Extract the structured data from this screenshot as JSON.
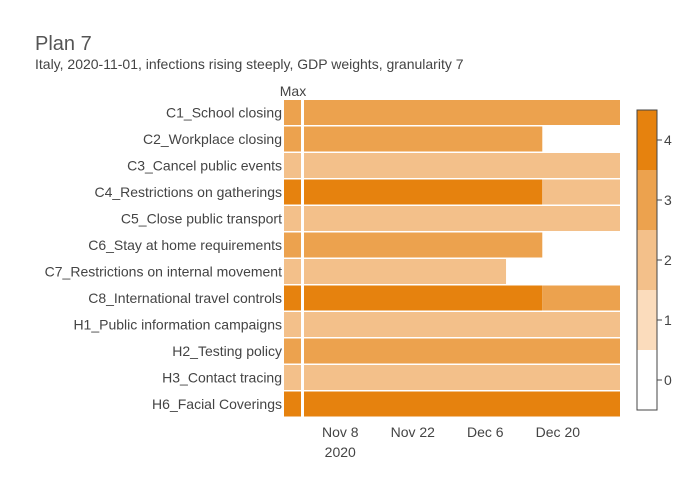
{
  "chart_data": {
    "type": "heatmap",
    "title": "Plan 7",
    "subtitle": "Italy, 2020-11-01, infections rising steeply, GDP weights, granularity 7",
    "max_column_label": "Max",
    "x_start": "2020-11-01",
    "x_ticks": [
      {
        "date": "2020-11-08",
        "label": "Nov 8",
        "sublabel": "2020"
      },
      {
        "date": "2020-11-22",
        "label": "Nov 22",
        "sublabel": ""
      },
      {
        "date": "2020-12-06",
        "label": "Dec 6",
        "sublabel": ""
      },
      {
        "date": "2020-12-20",
        "label": "Dec 20",
        "sublabel": ""
      }
    ],
    "x_end": "2021-01-01",
    "colorscale": {
      "min": 0,
      "max": 4,
      "ticks": [
        "0",
        "1",
        "2",
        "3",
        "4"
      ],
      "colors": [
        "#ffffff",
        "#fbdcbc",
        "#f3c08a",
        "#eca24e",
        "#e6820e"
      ]
    },
    "rows": [
      {
        "label": "C1_School closing",
        "max": 3,
        "segments": [
          {
            "start": "2020-11-01",
            "end": "2021-01-01",
            "level": 3
          }
        ]
      },
      {
        "label": "C2_Workplace closing",
        "max": 3,
        "segments": [
          {
            "start": "2020-11-01",
            "end": "2020-12-17",
            "level": 3
          }
        ]
      },
      {
        "label": "C3_Cancel public events",
        "max": 2,
        "segments": [
          {
            "start": "2020-11-01",
            "end": "2021-01-01",
            "level": 2
          }
        ]
      },
      {
        "label": "C4_Restrictions on gatherings",
        "max": 4,
        "segments": [
          {
            "start": "2020-11-01",
            "end": "2020-12-17",
            "level": 4
          },
          {
            "start": "2020-12-17",
            "end": "2021-01-01",
            "level": 2
          }
        ]
      },
      {
        "label": "C5_Close public transport",
        "max": 2,
        "segments": [
          {
            "start": "2020-11-01",
            "end": "2021-01-01",
            "level": 2
          }
        ]
      },
      {
        "label": "C6_Stay at home requirements",
        "max": 3,
        "segments": [
          {
            "start": "2020-11-01",
            "end": "2020-12-17",
            "level": 3
          }
        ]
      },
      {
        "label": "C7_Restrictions on internal movement",
        "max": 2,
        "segments": [
          {
            "start": "2020-11-01",
            "end": "2020-12-10",
            "level": 2
          }
        ]
      },
      {
        "label": "C8_International travel controls",
        "max": 4,
        "segments": [
          {
            "start": "2020-11-01",
            "end": "2020-12-17",
            "level": 4
          },
          {
            "start": "2020-12-17",
            "end": "2021-01-01",
            "level": 3
          }
        ]
      },
      {
        "label": "H1_Public information campaigns",
        "max": 2,
        "segments": [
          {
            "start": "2020-11-01",
            "end": "2021-01-01",
            "level": 2
          }
        ]
      },
      {
        "label": "H2_Testing policy",
        "max": 3,
        "segments": [
          {
            "start": "2020-11-01",
            "end": "2021-01-01",
            "level": 3
          }
        ]
      },
      {
        "label": "H3_Contact tracing",
        "max": 2,
        "segments": [
          {
            "start": "2020-11-01",
            "end": "2021-01-01",
            "level": 2
          }
        ]
      },
      {
        "label": "H6_Facial Coverings",
        "max": 4,
        "segments": [
          {
            "start": "2020-11-01",
            "end": "2021-01-01",
            "level": 4
          }
        ]
      }
    ]
  }
}
